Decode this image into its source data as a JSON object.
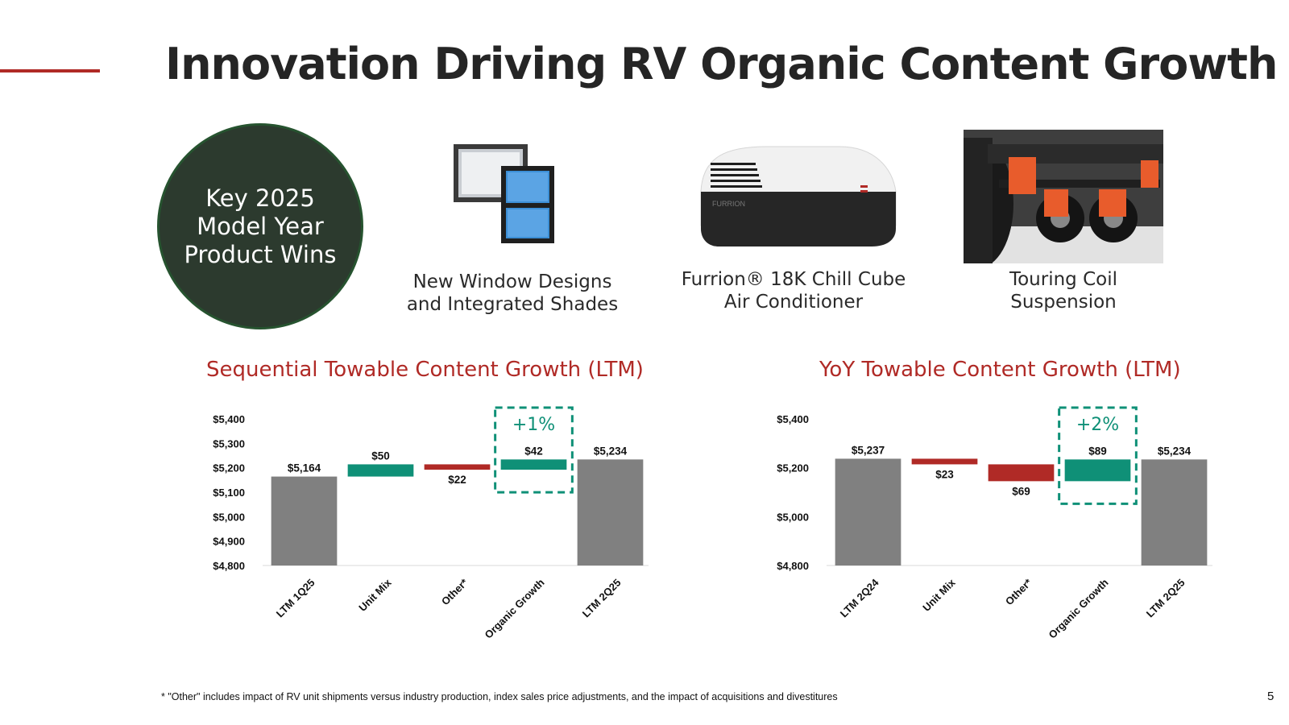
{
  "slide": {
    "title": "Innovation Driving RV Organic Content Growth",
    "badge": "Key 2025\nModel Year\nProduct Wins",
    "products": [
      {
        "caption": "New Window Designs\nand Integrated Shades",
        "icon": "window-icon"
      },
      {
        "caption": "Furrion® 18K Chill Cube\nAir Conditioner",
        "icon": "air-conditioner-icon",
        "brand": "FURRION"
      },
      {
        "caption": "Touring Coil\nSuspension",
        "icon": "suspension-icon"
      }
    ],
    "footnote": "* \"Other\" includes impact of RV unit shipments versus industry production, index sales price adjustments, and the impact of acquisitions and divestitures",
    "page_number": "5",
    "colors": {
      "accent": "#b02a26",
      "teal": "#0f9077",
      "red": "#b02a26",
      "gray": "#808080",
      "badge": "#2c3a2e"
    }
  },
  "chart_data": [
    {
      "type": "bar",
      "subtype": "waterfall",
      "title": "Sequential Towable Content Growth (LTM)",
      "categories": [
        "LTM 1Q25",
        "Unit Mix",
        "Other*",
        "Organic Growth",
        "LTM 2Q25"
      ],
      "values": [
        5164,
        50,
        -22,
        42,
        5234
      ],
      "kinds": [
        "total",
        "increase",
        "decrease",
        "increase",
        "total"
      ],
      "data_labels": [
        "$5,164",
        "$50",
        "$22",
        "$42",
        "$5,234"
      ],
      "ylim": [
        4800,
        5400
      ],
      "yticks": [
        4800,
        4900,
        5000,
        5100,
        5200,
        5300,
        5400
      ],
      "ytick_labels": [
        "$4,800",
        "$4,900",
        "$5,000",
        "$5,100",
        "$5,200",
        "$5,300",
        "$5,400"
      ],
      "highlight": {
        "category": "Organic Growth",
        "label": "+1%"
      },
      "grid": false
    },
    {
      "type": "bar",
      "subtype": "waterfall",
      "title": "YoY Towable Content Growth (LTM)",
      "categories": [
        "LTM 2Q24",
        "Unit Mix",
        "Other*",
        "Organic Growth",
        "LTM 2Q25"
      ],
      "values": [
        5237,
        -23,
        -69,
        89,
        5234
      ],
      "kinds": [
        "total",
        "decrease",
        "decrease",
        "increase",
        "total"
      ],
      "data_labels": [
        "$5,237",
        "$23",
        "$69",
        "$89",
        "$5,234"
      ],
      "ylim": [
        4800,
        5400
      ],
      "yticks": [
        4800,
        5000,
        5200,
        5400
      ],
      "ytick_labels": [
        "$4,800",
        "$5,000",
        "$5,200",
        "$5,400"
      ],
      "highlight": {
        "category": "Organic Growth",
        "label": "+2%"
      },
      "grid": false
    }
  ]
}
